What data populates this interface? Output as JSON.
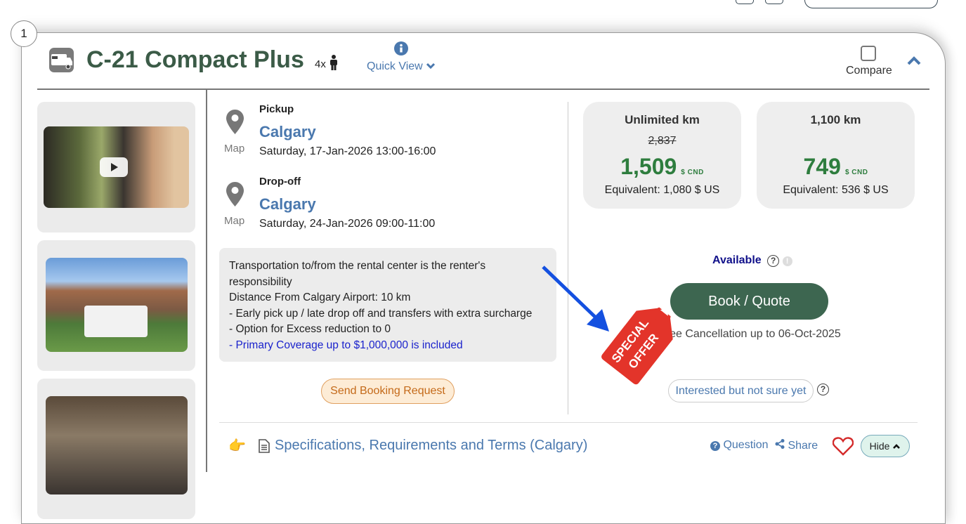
{
  "listing": {
    "index": "1",
    "title": "C-21 Compact Plus",
    "capacity": "4x",
    "quick_view": "Quick View",
    "compare": "Compare"
  },
  "pickup": {
    "label": "Pickup",
    "city": "Calgary",
    "date": "Saturday, 17-Jan-2026 13:00-16:00",
    "map": "Map"
  },
  "dropoff": {
    "label": "Drop-off",
    "city": "Calgary",
    "date": "Saturday, 24-Jan-2026 09:00-11:00",
    "map": "Map"
  },
  "info": {
    "lines": [
      "Transportation to/from the rental center is the renter's responsibility",
      "Distance From Calgary Airport: 10 km",
      "- Early pick up / late drop off and transfers with extra surcharge",
      "- Option for Excess reduction to 0"
    ],
    "coverage": "- Primary Coverage up to $1,000,000 is included"
  },
  "send_request": "Send Booking Request",
  "prices": [
    {
      "heading": "Unlimited km",
      "old": "2,837",
      "price": "1,509",
      "currency": "$ CND",
      "equivalent": "Equivalent: 1,080 $ US"
    },
    {
      "heading": "1,100 km",
      "old": "",
      "price": "749",
      "currency": "$ CND",
      "equivalent": "Equivalent: 536 $ US"
    }
  ],
  "availability": "Available",
  "book_button": "Book / Quote",
  "cancellation": "Free Cancellation up to 06-Oct-2025",
  "interested_button": "Interested but not sure yet",
  "special_offer": [
    "SPECIAL",
    "OFFER"
  ],
  "footer": {
    "specs_link": "Specifications, Requirements and Terms (Calgary)",
    "question": "Question",
    "share": "Share",
    "hide": "Hide"
  },
  "colors": {
    "title_green": "#3b5b47",
    "link_blue": "#4a78ae",
    "price_green": "#2e7d3e",
    "book_bg": "#3d6650",
    "tag_red": "#e3342a"
  }
}
